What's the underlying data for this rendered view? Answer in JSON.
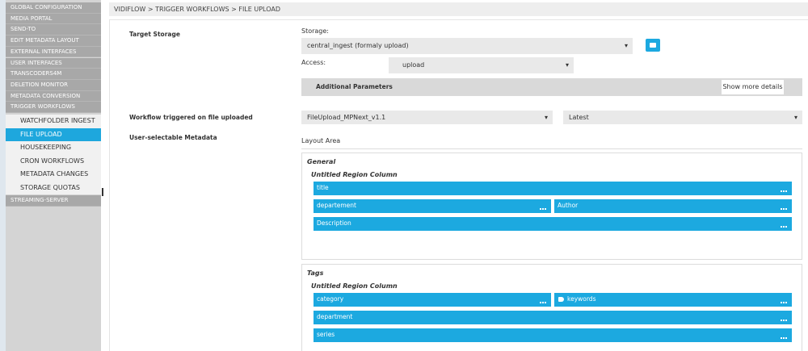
{
  "sidebar": {
    "items": [
      "GLOBAL CONFIGURATION",
      "MEDIA PORTAL",
      "SEND-TO",
      "EDIT METADATA LAYOUT",
      "EXTERNAL INTERFACES",
      "USER INTERFACES",
      "TRANSCODERS4M",
      "DELETION MONITOR",
      "METADATA CONVERSION",
      "TRIGGER WORKFLOWS"
    ],
    "subitems": [
      "WATCHFOLDER INGEST",
      "FILE UPLOAD",
      "HOUSEKEEPING",
      "CRON WORKFLOWS",
      "METADATA CHANGES",
      "STORAGE QUOTAS"
    ],
    "footer_item": "STREAMING-SERVER"
  },
  "breadcrumb": "VIDIFLOW > TRIGGER WORKFLOWS > FILE UPLOAD",
  "form": {
    "target_storage_label": "Target Storage",
    "storage_label": "Storage:",
    "storage_value": "central_ingest (formaly upload)",
    "access_label": "Access:",
    "access_value": "upload",
    "additional_parameters": "Additional Parameters",
    "show_more_button": "Show more details",
    "workflow_label": "Workflow triggered on file uploaded",
    "workflow_value": "FileUpload_MPNext_v1.1",
    "version_value": "Latest",
    "metadata_label": "User-selectable Metadata",
    "layout_area": "Layout Area"
  },
  "sections": [
    {
      "title": "General",
      "column": "Untitled Region Column",
      "fields": [
        "title",
        "departement",
        "Author",
        "Description"
      ]
    },
    {
      "title": "Tags",
      "column": "Untitled Region Column",
      "fields": [
        "category",
        "keywords",
        "department",
        "series"
      ]
    }
  ]
}
